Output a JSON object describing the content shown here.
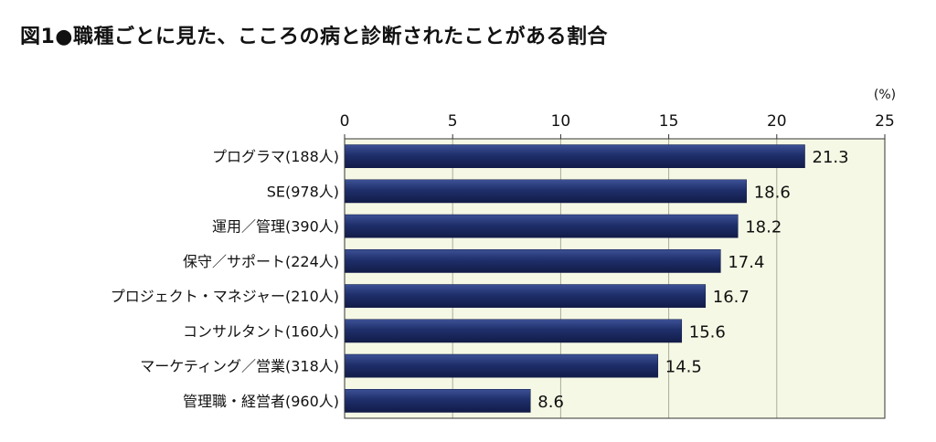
{
  "title": "図1●職種ごとに見た、こころの病と診断されたことがある割合",
  "chart_data": {
    "type": "bar",
    "orientation": "horizontal",
    "title": "図1●職種ごとに見た、こころの病と診断されたことがある割合",
    "unit_label": "(%)",
    "xlim": [
      0,
      25
    ],
    "xticks": [
      0,
      5,
      10,
      15,
      20,
      25
    ],
    "grid": true,
    "categories": [
      "プログラマ(188人)",
      "SE(978人)",
      "運用／管理(390人)",
      "保守／サポート(224人)",
      "プロジェクト・マネジャー(210人)",
      "コンサルタント(160人)",
      "マーケティング／営業(318人)",
      "管理職・経営者(960人)"
    ],
    "values": [
      21.3,
      18.6,
      18.2,
      17.4,
      16.7,
      15.6,
      14.5,
      8.6
    ],
    "value_labels": [
      "21.3",
      "18.6",
      "18.2",
      "17.4",
      "16.7",
      "15.6",
      "14.5",
      "8.6"
    ],
    "colors": {
      "plot_bg": "#f5f8e4",
      "bar": "#1f2f6b",
      "bar_dark": "#121c48",
      "bar_light": "#3d5195",
      "grid": "#a9ad9b",
      "axis": "#333333"
    }
  }
}
